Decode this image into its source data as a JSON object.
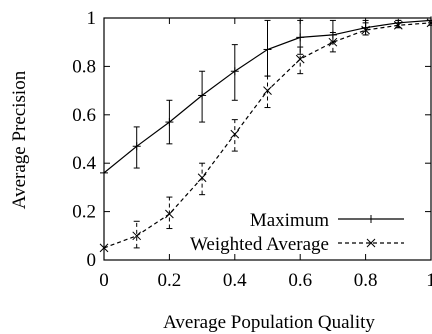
{
  "chart_data": {
    "type": "line",
    "title": "",
    "xlabel": "Average Population Quality",
    "ylabel": "Average Precision",
    "xlim": [
      0,
      1
    ],
    "ylim": [
      0,
      1
    ],
    "xticks": [
      "0",
      "0.2",
      "0.4",
      "0.6",
      "0.8",
      "1"
    ],
    "yticks": [
      "0",
      "0.2",
      "0.4",
      "0.6",
      "0.8",
      "1"
    ],
    "grid": false,
    "legend_position": "bottom-right",
    "x": [
      0,
      0.1,
      0.2,
      0.3,
      0.4,
      0.5,
      0.6,
      0.7,
      0.8,
      0.9,
      1.0
    ],
    "series": [
      {
        "name": "Maximum",
        "marker": "+",
        "line_style": "solid",
        "values": [
          0.36,
          0.47,
          0.57,
          0.68,
          0.78,
          0.87,
          0.92,
          0.93,
          0.96,
          0.98,
          0.99
        ],
        "error_low": [
          0.36,
          0.38,
          0.48,
          0.57,
          0.66,
          0.76,
          0.85,
          0.9,
          0.93,
          0.96,
          0.98
        ],
        "error_high": [
          0.36,
          0.55,
          0.66,
          0.78,
          0.89,
          0.99,
          0.99,
          0.99,
          0.99,
          0.99,
          0.99
        ]
      },
      {
        "name": "Weighted Average",
        "marker": "x",
        "line_style": "dashed",
        "values": [
          0.05,
          0.1,
          0.19,
          0.34,
          0.52,
          0.7,
          0.83,
          0.9,
          0.95,
          0.97,
          0.98
        ],
        "error_low": [
          0.05,
          0.05,
          0.13,
          0.27,
          0.45,
          0.63,
          0.77,
          0.86,
          0.93,
          0.96,
          0.97
        ],
        "error_high": [
          0.05,
          0.16,
          0.26,
          0.4,
          0.58,
          0.76,
          0.88,
          0.94,
          0.98,
          0.99,
          0.99
        ]
      }
    ]
  }
}
